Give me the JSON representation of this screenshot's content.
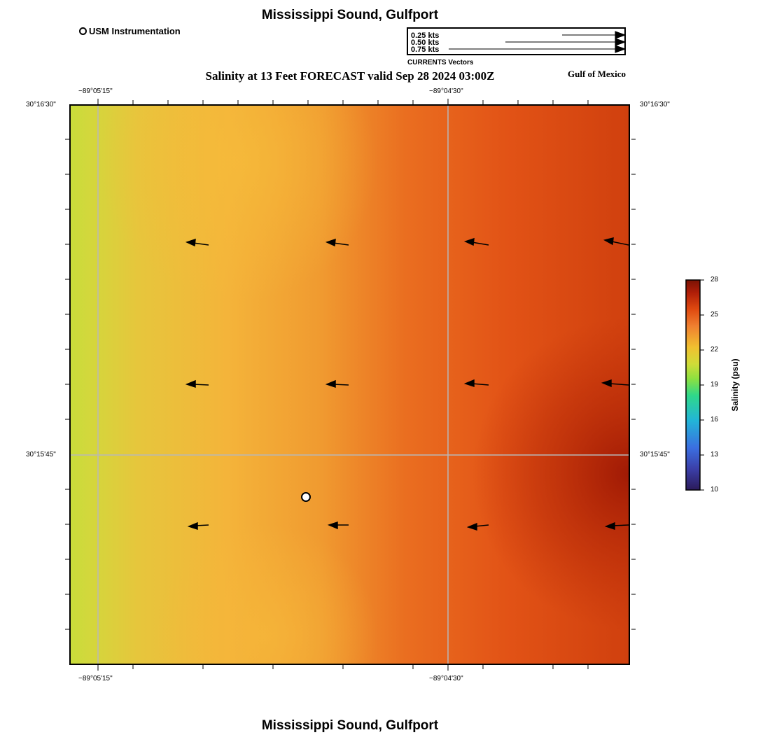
{
  "header": {
    "title": "Mississippi Sound, Gulfport",
    "subtitle": "Salinity at 13 Feet FORECAST valid Sep 28 2024 03:00Z",
    "region_label": "Gulf of Mexico"
  },
  "footer": {
    "title": "Mississippi Sound, Gulfport"
  },
  "legend": {
    "station_label": "USM Instrumentation",
    "vector_caption": "CURRENTS Vectors",
    "vector_scales": [
      "0.25 kts",
      "0.50 kts",
      "0.75 kts"
    ]
  },
  "map": {
    "lon_ticks": [
      "−89°05'15\"",
      "−89°04'30\""
    ],
    "lat_ticks": [
      "30°16'30\"",
      "30°15'45\""
    ],
    "station_marker": "usm-station",
    "current_direction": "westward"
  },
  "colorbar": {
    "title": "Salinity (psu)",
    "ticks": [
      "28",
      "25",
      "22",
      "19",
      "16",
      "13",
      "10"
    ],
    "range": [
      10,
      28
    ],
    "colors": [
      "#2b1a5a",
      "#3b5bd0",
      "#22b5d8",
      "#2fd88a",
      "#b8e030",
      "#f0c030",
      "#f08030",
      "#e04a10",
      "#b01e08",
      "#7a1204"
    ]
  }
}
